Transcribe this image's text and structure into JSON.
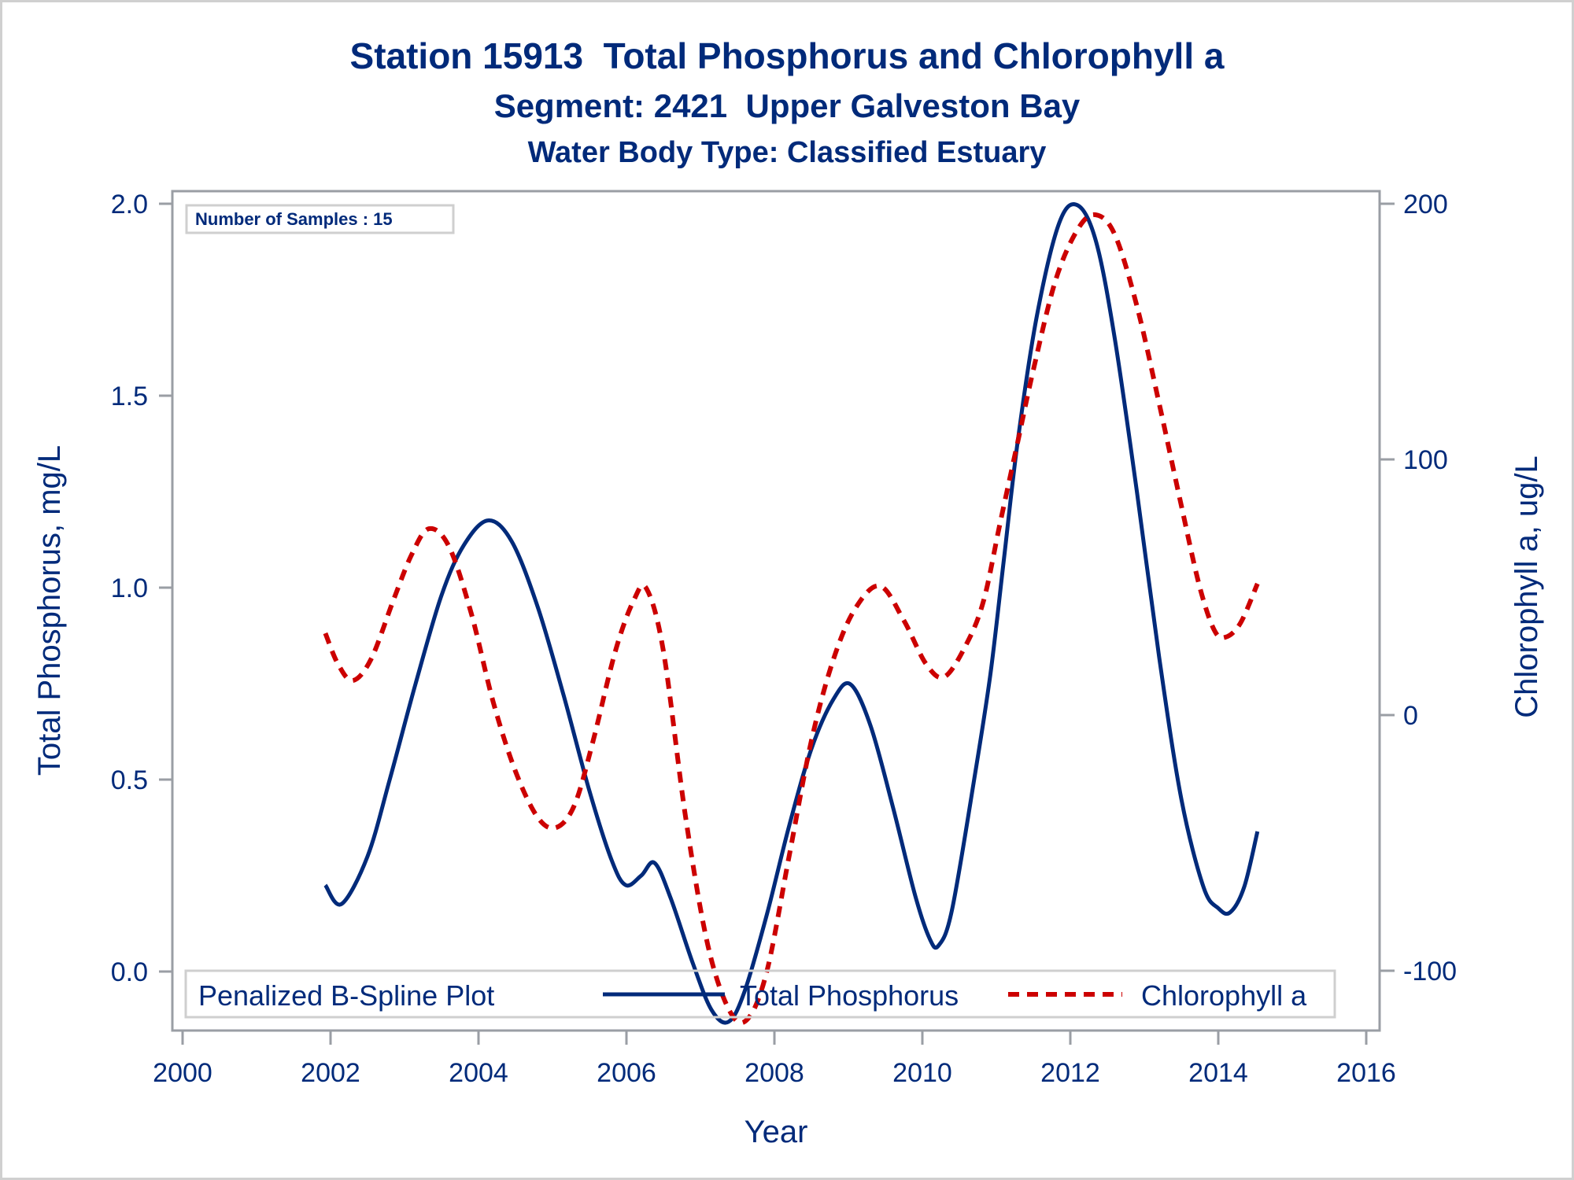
{
  "chart_data": {
    "type": "line",
    "title": "Station 15913  Total Phosphorus and Chlorophyll a",
    "subtitle": "Segment: 2421  Upper Galveston Bay",
    "subtitle2": "Water Body Type: Classified Estuary",
    "xlabel": "Year",
    "ylabel": "Total Phosphorus, mg/L",
    "y2label": "Chlorophyll a, ug/L",
    "xlim": [
      2000,
      2016
    ],
    "ylim": [
      -0.15,
      2.05
    ],
    "y2lim": [
      -122,
      209
    ],
    "x_ticks": [
      "2000",
      "2002",
      "2004",
      "2006",
      "2008",
      "2010",
      "2012",
      "2014",
      "2016"
    ],
    "x_tick_values": [
      2000,
      2002,
      2004,
      2006,
      2008,
      2010,
      2012,
      2014,
      2016
    ],
    "y_ticks": [
      "0.0",
      "0.5",
      "1.0",
      "1.5",
      "2.0"
    ],
    "y_tick_values": [
      0.0,
      0.5,
      1.0,
      1.5,
      2.0
    ],
    "y2_ticks": [
      "-100",
      "0",
      "100",
      "200"
    ],
    "y2_tick_values": [
      -100,
      0,
      100,
      200
    ],
    "grid": false,
    "inset_label": "Number of Samples : 15",
    "legend": {
      "title": "Penalized B-Spline Plot",
      "placement": "bottom-inside",
      "entries": [
        "Total Phosphorus",
        "Chlorophyll a"
      ]
    },
    "series": [
      {
        "name": "Total Phosphorus",
        "axis": "left",
        "color": "#002A7A",
        "style": "solid",
        "x": [
          2001.93,
          2002.15,
          2002.5,
          2002.8,
          2003.15,
          2003.5,
          2003.8,
          2004.13,
          2004.45,
          2004.8,
          2005.15,
          2005.5,
          2005.8,
          2005.99,
          2006.2,
          2006.38,
          2006.6,
          2006.9,
          2007.15,
          2007.38,
          2007.6,
          2007.9,
          2008.2,
          2008.5,
          2008.8,
          2009.03,
          2009.3,
          2009.6,
          2009.9,
          2010.1,
          2010.22,
          2010.4,
          2010.7,
          2010.92,
          2011.1,
          2011.29,
          2011.55,
          2011.85,
          2012.1,
          2012.35,
          2012.6,
          2012.9,
          2013.2,
          2013.5,
          2013.8,
          2014.0,
          2014.16,
          2014.35,
          2014.53
        ],
        "values": [
          0.225,
          0.176,
          0.3,
          0.5,
          0.75,
          0.98,
          1.11,
          1.175,
          1.12,
          0.95,
          0.72,
          0.47,
          0.29,
          0.225,
          0.25,
          0.283,
          0.19,
          0.02,
          -0.1,
          -0.131,
          -0.05,
          0.15,
          0.38,
          0.58,
          0.71,
          0.748,
          0.64,
          0.43,
          0.2,
          0.085,
          0.068,
          0.16,
          0.5,
          0.775,
          1.07,
          1.383,
          1.71,
          1.95,
          1.996,
          1.9,
          1.65,
          1.25,
          0.82,
          0.45,
          0.22,
          0.165,
          0.154,
          0.22,
          0.365
        ]
      },
      {
        "name": "Chlorophyll a",
        "axis": "right",
        "color": "#CC0000",
        "style": "dashed",
        "x": [
          2001.93,
          2002.1,
          2002.3,
          2002.55,
          2002.85,
          2003.1,
          2003.33,
          2003.6,
          2003.9,
          2004.2,
          2004.5,
          2004.8,
          2005.05,
          2005.3,
          2005.55,
          2005.85,
          2006.1,
          2006.27,
          2006.5,
          2006.8,
          2007.1,
          2007.4,
          2007.64,
          2007.9,
          2008.2,
          2008.5,
          2008.8,
          2009.1,
          2009.43,
          2009.75,
          2010.05,
          2010.3,
          2010.6,
          2010.83,
          2011.05,
          2011.29,
          2011.5,
          2011.8,
          2012.1,
          2012.34,
          2012.6,
          2012.9,
          2013.2,
          2013.5,
          2013.75,
          2013.95,
          2014.1,
          2014.3,
          2014.53
        ],
        "values": [
          32,
          20,
          13.5,
          22,
          45,
          63,
          72.9,
          66,
          40,
          5,
          -22,
          -40,
          -44,
          -35,
          -10,
          25,
          45,
          49.5,
          25,
          -40,
          -90,
          -116,
          -118.8,
          -100,
          -55,
          -10,
          22,
          42,
          50.5,
          37,
          20,
          15,
          28,
          45,
          75,
          107,
          135,
          170,
          190,
          195.7,
          188,
          160,
          122,
          82,
          50,
          33,
          30.5,
          36,
          51.4
        ]
      }
    ]
  }
}
